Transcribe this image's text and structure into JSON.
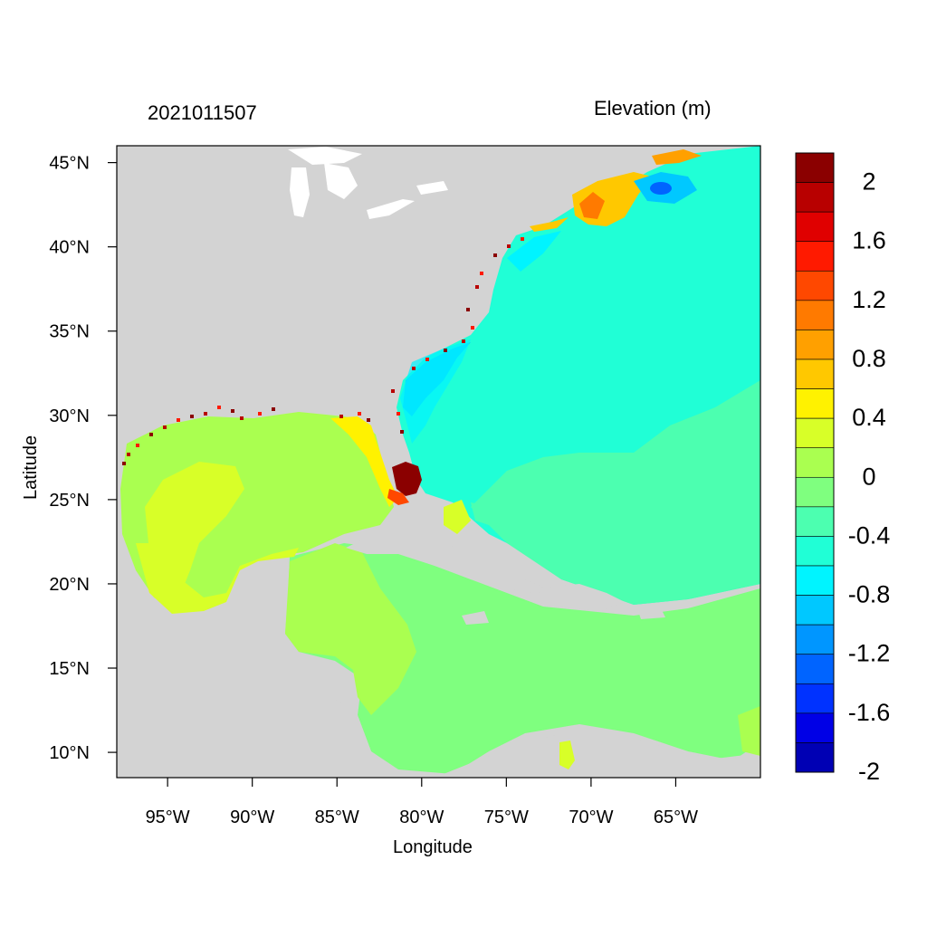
{
  "header": {
    "timestamp": "2021011507",
    "variable_title": "Elevation (m)"
  },
  "axes": {
    "x_label": "Longitude",
    "y_label": "Latitude",
    "lon_ticks": [
      {
        "value": -95,
        "label": "95°W"
      },
      {
        "value": -90,
        "label": "90°W"
      },
      {
        "value": -85,
        "label": "85°W"
      },
      {
        "value": -80,
        "label": "80°W"
      },
      {
        "value": -75,
        "label": "75°W"
      },
      {
        "value": -70,
        "label": "70°W"
      },
      {
        "value": -65,
        "label": "65°W"
      }
    ],
    "lat_ticks": [
      {
        "value": 45,
        "label": "45°N"
      },
      {
        "value": 40,
        "label": "40°N"
      },
      {
        "value": 35,
        "label": "35°N"
      },
      {
        "value": 30,
        "label": "30°N"
      },
      {
        "value": 25,
        "label": "25°N"
      },
      {
        "value": 20,
        "label": "20°N"
      },
      {
        "value": 15,
        "label": "15°N"
      },
      {
        "value": 10,
        "label": "10°N"
      }
    ],
    "lon_range": [
      -98,
      -60
    ],
    "lat_range": [
      8.5,
      46
    ]
  },
  "colors": {
    "land": "#d3d3d3",
    "background": "#ffffff"
  },
  "colorbar": {
    "bins": [
      {
        "color": "#8b0000"
      },
      {
        "color": "#b80000"
      },
      {
        "color": "#e00000"
      },
      {
        "color": "#ff1a00"
      },
      {
        "color": "#ff4800"
      },
      {
        "color": "#ff7a00"
      },
      {
        "color": "#ffa000"
      },
      {
        "color": "#ffc800"
      },
      {
        "color": "#fff200"
      },
      {
        "color": "#d8ff28"
      },
      {
        "color": "#aaff50"
      },
      {
        "color": "#7fff7f"
      },
      {
        "color": "#4cffb0"
      },
      {
        "color": "#20ffd6"
      },
      {
        "color": "#00f4ff"
      },
      {
        "color": "#00c8ff"
      },
      {
        "color": "#0096ff"
      },
      {
        "color": "#0064ff"
      },
      {
        "color": "#0032ff"
      },
      {
        "color": "#0000e6"
      },
      {
        "color": "#0000b4"
      }
    ],
    "labels": [
      {
        "value": 2,
        "text": "2"
      },
      {
        "value": 1.6,
        "text": "1.6"
      },
      {
        "value": 1.2,
        "text": "1.2"
      },
      {
        "value": 0.8,
        "text": "0.8"
      },
      {
        "value": 0.4,
        "text": "0.4"
      },
      {
        "value": 0,
        "text": "0"
      },
      {
        "value": -0.4,
        "text": "-0.4"
      },
      {
        "value": -0.8,
        "text": "-0.8"
      },
      {
        "value": -1.2,
        "text": "-1.2"
      },
      {
        "value": -1.6,
        "text": "-1.6"
      },
      {
        "value": -2,
        "text": "-2"
      }
    ]
  },
  "regions": {
    "atlantic": "#20ffd6",
    "gulf": "#aaff50",
    "caribbean": "#7fff7f",
    "south_atlantic_band": "#4cffb0",
    "florida_surge": "#8b0000",
    "gulf_of_maine": "#ffc800",
    "scotian_low": "#00c8ff",
    "se_coast_low": "#00c8ff"
  }
}
